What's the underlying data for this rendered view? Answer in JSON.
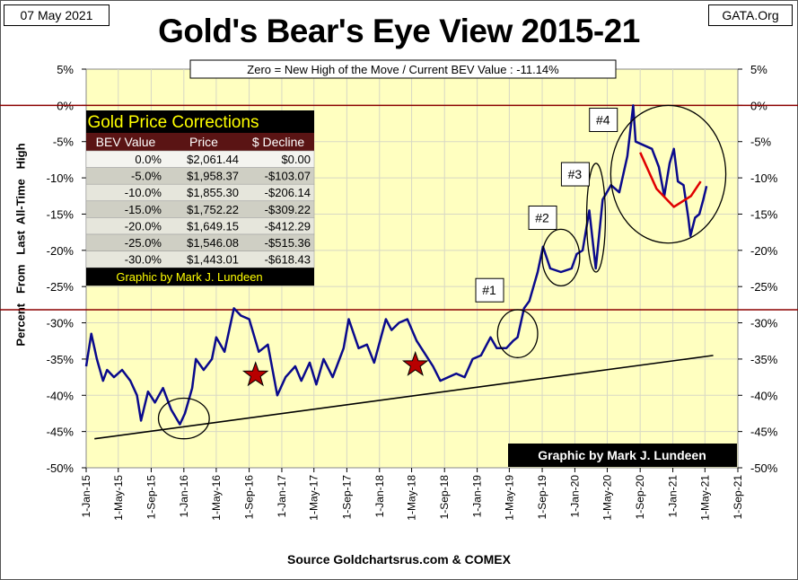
{
  "header": {
    "date": "07 May 2021",
    "source_tag": "GATA.Org"
  },
  "chart_data": {
    "type": "line",
    "title": "Gold's Bear's Eye View 2015-21",
    "subtitle": "Zero = New High of the Move / Current  BEV Value : -11.14%",
    "ylabel": "Percent   From   Last  All-Time   High",
    "xlabel": "Source Goldchartsrus.com  & COMEX",
    "ylim": [
      -50,
      5
    ],
    "y_ticks": [
      "5%",
      "0%",
      "-5%",
      "-10%",
      "-15%",
      "-20%",
      "-25%",
      "-30%",
      "-35%",
      "-40%",
      "-45%",
      "-50%"
    ],
    "x_ticks": [
      "1-Jan-15",
      "1-May-15",
      "1-Sep-15",
      "1-Jan-16",
      "1-May-16",
      "1-Sep-16",
      "1-Jan-17",
      "1-May-17",
      "1-Sep-17",
      "1-Jan-18",
      "1-May-18",
      "1-Sep-18",
      "1-Jan-19",
      "1-May-19",
      "1-Sep-19",
      "1-Jan-20",
      "1-May-20",
      "1-Sep-20",
      "1-Jan-21",
      "1-May-21",
      "1-Sep-21"
    ],
    "series": [
      {
        "color": "#0a0a8c",
        "points": [
          [
            "2015-01-01",
            -36
          ],
          [
            "2015-01-20",
            -31.5
          ],
          [
            "2015-02-10",
            -35
          ],
          [
            "2015-03-05",
            -38
          ],
          [
            "2015-03-20",
            -36.5
          ],
          [
            "2015-04-15",
            -37.5
          ],
          [
            "2015-05-15",
            -36.5
          ],
          [
            "2015-06-15",
            -38
          ],
          [
            "2015-07-10",
            -40
          ],
          [
            "2015-07-25",
            -43.5
          ],
          [
            "2015-08-20",
            -39.5
          ],
          [
            "2015-09-15",
            -41
          ],
          [
            "2015-10-15",
            -39
          ],
          [
            "2015-11-15",
            -42
          ],
          [
            "2015-12-17",
            -44
          ],
          [
            "2016-01-05",
            -42.5
          ],
          [
            "2016-02-01",
            -39
          ],
          [
            "2016-02-15",
            -35
          ],
          [
            "2016-03-15",
            -36.5
          ],
          [
            "2016-04-15",
            -35
          ],
          [
            "2016-05-01",
            -32
          ],
          [
            "2016-06-01",
            -34
          ],
          [
            "2016-07-06",
            -28
          ],
          [
            "2016-08-01",
            -29
          ],
          [
            "2016-09-01",
            -29.5
          ],
          [
            "2016-10-07",
            -34
          ],
          [
            "2016-11-10",
            -33
          ],
          [
            "2016-12-15",
            -40
          ],
          [
            "2017-01-15",
            -37.5
          ],
          [
            "2017-02-20",
            -36
          ],
          [
            "2017-03-15",
            -38
          ],
          [
            "2017-04-15",
            -35.5
          ],
          [
            "2017-05-10",
            -38.5
          ],
          [
            "2017-06-06",
            -35
          ],
          [
            "2017-07-10",
            -37.5
          ],
          [
            "2017-08-20",
            -33.5
          ],
          [
            "2017-09-08",
            -29.5
          ],
          [
            "2017-10-15",
            -33.5
          ],
          [
            "2017-11-15",
            -33
          ],
          [
            "2017-12-12",
            -35.5
          ],
          [
            "2018-01-25",
            -29.5
          ],
          [
            "2018-02-15",
            -31
          ],
          [
            "2018-03-15",
            -30
          ],
          [
            "2018-04-15",
            -29.5
          ],
          [
            "2018-05-20",
            -32.5
          ],
          [
            "2018-06-15",
            -34
          ],
          [
            "2018-07-20",
            -36
          ],
          [
            "2018-08-16",
            -38
          ],
          [
            "2018-09-15",
            -37.5
          ],
          [
            "2018-10-15",
            -37
          ],
          [
            "2018-11-15",
            -37.5
          ],
          [
            "2018-12-15",
            -35
          ],
          [
            "2019-01-15",
            -34.5
          ],
          [
            "2019-02-20",
            -32
          ],
          [
            "2019-03-15",
            -33.5
          ],
          [
            "2019-04-20",
            -33.5
          ],
          [
            "2019-05-15",
            -32.5
          ],
          [
            "2019-06-01",
            -32
          ],
          [
            "2019-06-25",
            -28
          ],
          [
            "2019-07-15",
            -27
          ],
          [
            "2019-08-15",
            -23
          ],
          [
            "2019-09-04",
            -19.5
          ],
          [
            "2019-10-01",
            -22.5
          ],
          [
            "2019-11-10",
            -23
          ],
          [
            "2019-12-20",
            -22.5
          ],
          [
            "2020-01-08",
            -20.5
          ],
          [
            "2020-01-30",
            -20
          ],
          [
            "2020-02-24",
            -14.5
          ],
          [
            "2020-03-19",
            -22.5
          ],
          [
            "2020-04-14",
            -13
          ],
          [
            "2020-05-15",
            -11
          ],
          [
            "2020-06-15",
            -12
          ],
          [
            "2020-07-15",
            -7
          ],
          [
            "2020-08-06",
            0
          ],
          [
            "2020-08-15",
            -5
          ],
          [
            "2020-09-15",
            -5.5
          ],
          [
            "2020-10-15",
            -6
          ],
          [
            "2020-11-10",
            -8.5
          ],
          [
            "2020-11-30",
            -12.5
          ],
          [
            "2020-12-20",
            -8
          ],
          [
            "2021-01-05",
            -6
          ],
          [
            "2021-01-20",
            -10.5
          ],
          [
            "2021-02-10",
            -11
          ],
          [
            "2021-02-28",
            -15.5
          ],
          [
            "2021-03-08",
            -18
          ],
          [
            "2021-03-25",
            -15.5
          ],
          [
            "2021-04-10",
            -15
          ],
          [
            "2021-04-25",
            -13
          ],
          [
            "2021-05-07",
            -11.14
          ]
        ]
      }
    ],
    "reference_lines": [
      {
        "y": 0,
        "color": "#8b0000"
      },
      {
        "y": -28.2,
        "color": "#8b0000"
      }
    ],
    "trendline": [
      [
        "2015-02-01",
        -46
      ],
      [
        "2021-06-01",
        -34.5
      ]
    ],
    "red_arc": [
      [
        "2020-09-01",
        -6.5
      ],
      [
        "2020-11-01",
        -11.5
      ],
      [
        "2021-01-05",
        -14
      ],
      [
        "2021-03-10",
        -12.5
      ],
      [
        "2021-04-15",
        -10.5
      ]
    ],
    "circles": [
      {
        "label": "",
        "cx": "2016-01-01",
        "cy": -43.2,
        "rx_days": 95,
        "ry": 2.8
      },
      {
        "label": "#1",
        "cx": "2019-06-01",
        "cy": -31.5,
        "rx_days": 75,
        "ry": 3.3
      },
      {
        "label": "#2",
        "cx": "2019-11-10",
        "cy": -21,
        "rx_days": 70,
        "ry": 3.9
      },
      {
        "label": "#3",
        "cx": "2020-03-20",
        "cy": -15.5,
        "rx_days": 35,
        "ry": 7.5
      },
      {
        "label": "#4",
        "cx": "2020-12-15",
        "cy": -9.5,
        "rx_days": 215,
        "ry": 9.5
      }
    ],
    "number_labels": [
      {
        "text": "#1",
        "x": "2019-02-15",
        "y": -25.5
      },
      {
        "text": "#2",
        "x": "2019-09-01",
        "y": -15.5
      },
      {
        "text": "#3",
        "x": "2020-01-01",
        "y": -9.5
      },
      {
        "text": "#4",
        "x": "2020-04-15",
        "y": -2
      }
    ],
    "stars": [
      {
        "x": "2016-09-25",
        "y": -37.2
      },
      {
        "x": "2018-05-15",
        "y": -35.8
      }
    ],
    "watermark": "Graphic by Mark J. Lundeen"
  },
  "table": {
    "title": "Gold Price Corrections",
    "headers": [
      "BEV Value",
      "Price",
      "$ Decline"
    ],
    "rows": [
      [
        "0.0%",
        "$2,061.44",
        "$0.00"
      ],
      [
        "-5.0%",
        "$1,958.37",
        "-$103.07"
      ],
      [
        "-10.0%",
        "$1,855.30",
        "-$206.14"
      ],
      [
        "-15.0%",
        "$1,752.22",
        "-$309.22"
      ],
      [
        "-20.0%",
        "$1,649.15",
        "-$412.29"
      ],
      [
        "-25.0%",
        "$1,546.08",
        "-$515.36"
      ],
      [
        "-30.0%",
        "$1,443.01",
        "-$618.43"
      ]
    ],
    "footer": "Graphic by Mark J. Lundeen"
  },
  "colors": {
    "plot_bg": "#ffffc0",
    "line": "#0a0a8c",
    "ref_line": "#8b0000",
    "table_header_bg": "#5a1414",
    "table_title_color": "#ffff00"
  }
}
